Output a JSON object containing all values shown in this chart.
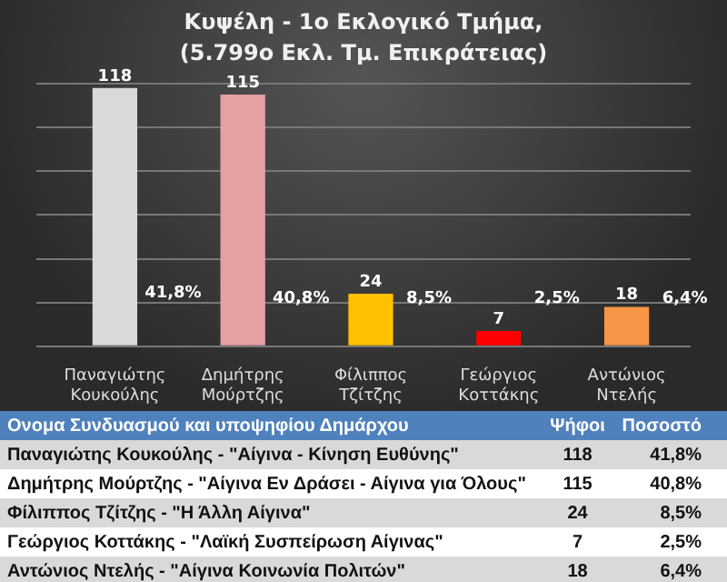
{
  "chart_data": {
    "type": "bar",
    "title": "Κυψέλη - 1ο Εκλογικό  Τμήμα,",
    "subtitle": "(5.799ο Εκλ. Τμ. Επικράτειας)",
    "categories": [
      "Παναγιώτης Κουκούλης",
      "Δημήτρης Μούρτζης",
      "Φίλιππος Τζίτζης",
      "Γεώργιος Κοττάκης",
      "Αντώνιος Ντελής"
    ],
    "values": [
      118,
      115,
      24,
      7,
      18
    ],
    "colors": [
      "#d9d9d9",
      "#e6a0a3",
      "#ffc000",
      "#ff0000",
      "#f79646"
    ],
    "ylim": [
      0,
      120
    ],
    "yticks": [
      {
        "value": 0,
        "label": null
      },
      {
        "value": 20,
        "label": null
      },
      {
        "value": 40,
        "label": null
      },
      {
        "value": 60,
        "label": null
      },
      {
        "value": 80,
        "label": null
      },
      {
        "value": 100,
        "label": null
      },
      {
        "value": 120,
        "label": null
      }
    ],
    "grid": "y",
    "tick_labels": "x",
    "data_labels": true,
    "legend": false,
    "annotations": [
      "Ονομα Συνδυασμού και υποψηφίου Δημάρχου",
      "Ψήφοι",
      "Ποσοστό",
      "Παναγιώτης Κουκούλης - \"Αίγινα - Κίνηση Ευθύνης\"",
      "118",
      "41,8%",
      "Δημήτρης Μούρτζης - \"Αίγινα  Εν Δράσει - Αίγινα για Όλους\"",
      "115",
      "40,8%",
      "Φίλιππος Τζίτζης - \"Η Άλλη Αίγινα\"",
      "24",
      "8,5%",
      "Γεώργιος Κοττάκης - \"Λαϊκή Συσπείρωση Αίγινας\"",
      "7",
      "2,5%",
      "Αντώνιος Ντελής - \"Αίγινα Κοινωνία Πολιτών\"",
      "18",
      "6,4%",
      "41,8%",
      "40,8%",
      "8,5%",
      "2,5%",
      "6,4%"
    ]
  }
}
